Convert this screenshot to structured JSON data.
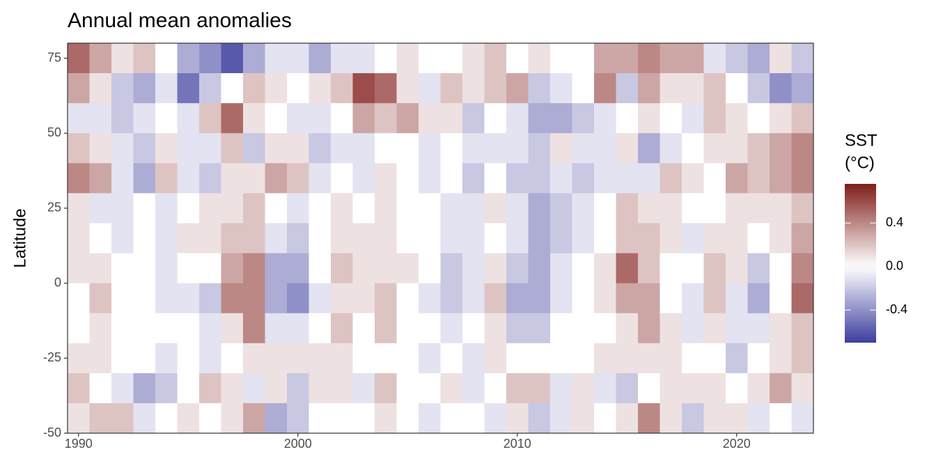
{
  "chart_data": {
    "type": "heatmap",
    "title": "Annual mean anomalies",
    "y_label": "Latitude",
    "x": [
      1990,
      1991,
      1992,
      1993,
      1994,
      1995,
      1996,
      1997,
      1998,
      1999,
      2000,
      2001,
      2002,
      2003,
      2004,
      2005,
      2006,
      2007,
      2008,
      2009,
      2010,
      2011,
      2012,
      2013,
      2014,
      2015,
      2016,
      2017,
      2018,
      2019,
      2020,
      2021,
      2022,
      2023
    ],
    "y": [
      75,
      65,
      55,
      45,
      35,
      25,
      15,
      5,
      -5,
      -15,
      -25,
      -35,
      -45
    ],
    "z": [
      [
        0.5,
        0.3,
        -0.1,
        0.2,
        0.4,
        0.1,
        0.1,
        0.1,
        0.0,
        0.0,
        0.1,
        0.2,
        0.1
      ],
      [
        0.3,
        0.1,
        -0.1,
        0.1,
        0.3,
        -0.1,
        0.0,
        0.1,
        0.2,
        0.1,
        0.1,
        0.0,
        0.2
      ],
      [
        0.1,
        -0.2,
        -0.2,
        -0.1,
        -0.1,
        -0.1,
        -0.1,
        0.0,
        0.0,
        0.0,
        0.0,
        -0.1,
        0.2
      ],
      [
        0.2,
        -0.3,
        -0.1,
        -0.2,
        -0.3,
        0.0,
        0.0,
        0.0,
        0.0,
        0.0,
        0.0,
        -0.3,
        -0.1
      ],
      [
        0.0,
        -0.1,
        0.0,
        0.1,
        0.2,
        -0.1,
        -0.1,
        -0.1,
        -0.1,
        0.0,
        -0.1,
        -0.2,
        0.0
      ],
      [
        -0.3,
        -0.5,
        -0.1,
        -0.1,
        -0.1,
        0.0,
        0.1,
        0.0,
        -0.1,
        0.0,
        0.0,
        0.0,
        0.1
      ],
      [
        -0.4,
        -0.2,
        0.2,
        -0.1,
        -0.2,
        0.1,
        0.1,
        0.0,
        -0.2,
        -0.1,
        -0.1,
        0.2,
        0.0
      ],
      [
        -0.6,
        0.0,
        0.5,
        0.2,
        0.1,
        0.1,
        0.2,
        0.3,
        0.4,
        0.1,
        0.0,
        0.1,
        0.1
      ],
      [
        -0.3,
        0.2,
        0.1,
        -0.2,
        0.1,
        0.2,
        0.2,
        0.4,
        0.4,
        0.4,
        0.1,
        -0.1,
        0.3
      ],
      [
        -0.1,
        0.1,
        0.0,
        0.1,
        0.3,
        0.0,
        -0.1,
        -0.3,
        -0.3,
        -0.1,
        0.1,
        0.1,
        -0.3
      ],
      [
        -0.1,
        0.0,
        -0.1,
        0.1,
        0.2,
        -0.1,
        -0.2,
        -0.3,
        -0.4,
        -0.1,
        0.1,
        -0.2,
        -0.2
      ],
      [
        -0.3,
        0.1,
        -0.1,
        -0.2,
        -0.1,
        0.0,
        0.0,
        0.0,
        -0.1,
        0.0,
        0.1,
        0.1,
        0.0
      ],
      [
        -0.1,
        0.2,
        0.0,
        -0.1,
        0.0,
        0.1,
        0.1,
        0.2,
        0.1,
        0.2,
        0.1,
        0.1,
        0.0
      ],
      [
        -0.1,
        0.6,
        0.3,
        -0.1,
        -0.1,
        0.0,
        0.1,
        0.1,
        0.1,
        0.0,
        0.0,
        -0.1,
        0.0
      ],
      [
        0.0,
        0.5,
        0.2,
        0.0,
        0.1,
        0.1,
        0.1,
        0.1,
        0.2,
        0.2,
        0.0,
        0.2,
        0.1
      ],
      [
        0.1,
        0.1,
        0.3,
        0.0,
        0.0,
        0.0,
        0.0,
        0.1,
        0.0,
        0.0,
        0.0,
        0.0,
        0.0
      ],
      [
        0.0,
        -0.1,
        0.1,
        -0.1,
        -0.1,
        0.0,
        0.0,
        0.0,
        -0.1,
        0.0,
        -0.1,
        0.0,
        -0.1
      ],
      [
        0.0,
        0.2,
        0.1,
        0.0,
        0.0,
        -0.1,
        -0.1,
        -0.2,
        -0.2,
        -0.1,
        0.0,
        0.1,
        0.0
      ],
      [
        0.1,
        0.1,
        -0.2,
        -0.1,
        -0.2,
        -0.1,
        -0.1,
        -0.1,
        -0.1,
        0.0,
        -0.1,
        -0.1,
        0.0
      ],
      [
        0.2,
        0.2,
        0.0,
        -0.1,
        0.0,
        0.1,
        0.0,
        0.1,
        0.2,
        0.1,
        0.1,
        0.0,
        -0.1
      ],
      [
        0.0,
        0.3,
        -0.1,
        -0.1,
        -0.2,
        -0.1,
        -0.1,
        -0.2,
        -0.3,
        -0.2,
        0.0,
        0.2,
        0.1
      ],
      [
        0.1,
        -0.2,
        -0.3,
        -0.2,
        -0.2,
        -0.3,
        -0.3,
        -0.3,
        -0.3,
        -0.2,
        0.0,
        0.2,
        -0.2
      ],
      [
        0.0,
        -0.1,
        -0.3,
        0.1,
        -0.1,
        -0.2,
        -0.2,
        -0.1,
        -0.1,
        0.0,
        0.0,
        -0.1,
        -0.1
      ],
      [
        0.0,
        0.0,
        -0.2,
        -0.1,
        -0.2,
        -0.1,
        -0.1,
        0.0,
        0.0,
        0.0,
        0.0,
        0.1,
        0.1
      ],
      [
        0.3,
        0.4,
        -0.1,
        -0.1,
        -0.1,
        0.0,
        0.0,
        0.1,
        0.1,
        0.0,
        0.1,
        -0.1,
        0.0
      ],
      [
        0.3,
        -0.2,
        0.0,
        0.1,
        -0.1,
        0.2,
        0.2,
        0.5,
        0.3,
        0.1,
        0.1,
        -0.2,
        0.1
      ],
      [
        0.4,
        0.3,
        0.1,
        -0.3,
        -0.1,
        0.1,
        0.2,
        0.2,
        0.3,
        0.3,
        0.1,
        0.0,
        0.4
      ],
      [
        0.3,
        0.1,
        0.0,
        -0.1,
        0.2,
        0.1,
        0.1,
        0.0,
        0.0,
        0.1,
        0.1,
        0.1,
        0.1
      ],
      [
        0.3,
        0.1,
        -0.1,
        0.0,
        0.1,
        0.0,
        -0.1,
        0.0,
        -0.1,
        -0.1,
        0.0,
        0.1,
        -0.2
      ],
      [
        -0.1,
        0.2,
        0.2,
        0.1,
        0.0,
        0.0,
        0.1,
        0.2,
        0.2,
        0.1,
        0.0,
        0.1,
        0.1
      ],
      [
        -0.2,
        0.0,
        0.1,
        0.1,
        0.3,
        0.1,
        0.1,
        0.1,
        -0.1,
        -0.1,
        -0.2,
        0.0,
        0.1
      ],
      [
        -0.3,
        -0.2,
        0.0,
        0.2,
        0.2,
        0.1,
        0.0,
        -0.2,
        -0.3,
        -0.1,
        0.0,
        0.1,
        -0.1
      ],
      [
        0.1,
        -0.4,
        0.1,
        0.3,
        0.3,
        0.1,
        0.1,
        0.0,
        0.0,
        0.1,
        0.1,
        0.3,
        0.0
      ],
      [
        -0.2,
        -0.3,
        0.2,
        0.4,
        0.4,
        0.2,
        0.3,
        0.4,
        0.5,
        0.2,
        0.2,
        0.1,
        -0.1
      ]
    ],
    "xlim": [
      1989.5,
      2023.5
    ],
    "xticks": [
      1990,
      2000,
      2010,
      2020
    ],
    "ylim": [
      -50,
      80
    ],
    "yticks": [
      -50,
      -25,
      0,
      25,
      50,
      75
    ],
    "colorbar": {
      "title": [
        "SST",
        "(°C)"
      ],
      "lim": [
        -0.7,
        0.76
      ],
      "ticks": [
        0.4,
        {
          "value": 0,
          "label": "0.0"
        },
        -0.4
      ],
      "low_color": "#3d3d9e",
      "mid_color": "#ffffff",
      "high_color": "#7f1d1a"
    }
  }
}
